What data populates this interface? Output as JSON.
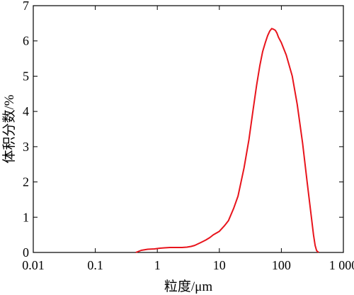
{
  "chart_data": {
    "type": "line",
    "title": "",
    "xlabel": "粒度/μm",
    "ylabel": "体积分数/%",
    "xscale": "log",
    "xlim": [
      0.01,
      1000
    ],
    "ylim": [
      0,
      7
    ],
    "grid": false,
    "x_ticks": [
      0.01,
      0.1,
      1,
      10,
      100,
      1000
    ],
    "x_tick_labels": [
      "0.01",
      "0.1",
      "1",
      "10",
      "100",
      "1 000"
    ],
    "y_ticks": [
      0,
      1,
      2,
      3,
      4,
      5,
      6,
      7
    ],
    "y_tick_labels": [
      "0",
      "1",
      "2",
      "3",
      "4",
      "5",
      "6",
      "7"
    ],
    "series": [
      {
        "color": "#e8141c",
        "x": [
          0.45,
          0.55,
          0.7,
          0.9,
          1.1,
          1.3,
          1.6,
          2.0,
          2.5,
          3.0,
          3.5,
          4.0,
          5.0,
          6.0,
          7.0,
          8.0,
          10,
          12,
          14,
          17,
          20,
          25,
          30,
          35,
          40,
          45,
          50,
          55,
          60,
          65,
          70,
          75,
          80,
          85,
          90,
          100,
          120,
          150,
          180,
          220,
          260,
          300,
          330,
          350,
          370,
          400
        ],
        "y": [
          0.0,
          0.06,
          0.09,
          0.1,
          0.12,
          0.13,
          0.14,
          0.14,
          0.14,
          0.15,
          0.17,
          0.2,
          0.28,
          0.35,
          0.42,
          0.5,
          0.6,
          0.75,
          0.9,
          1.25,
          1.6,
          2.4,
          3.2,
          4.05,
          4.75,
          5.3,
          5.7,
          5.95,
          6.15,
          6.28,
          6.35,
          6.33,
          6.3,
          6.22,
          6.1,
          5.95,
          5.6,
          5.0,
          4.2,
          3.1,
          2.0,
          1.1,
          0.5,
          0.2,
          0.05,
          0.0
        ]
      }
    ]
  }
}
